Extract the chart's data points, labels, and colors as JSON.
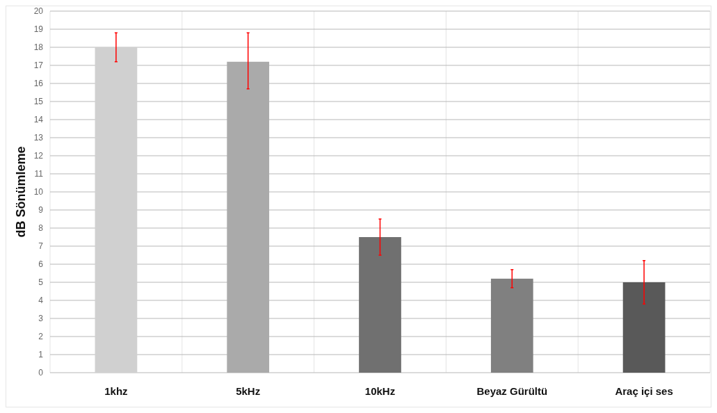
{
  "chart_data": {
    "type": "bar",
    "ylabel": "dB Sönümleme",
    "categories": [
      "1khz",
      "5kHz",
      "10kHz",
      "Beyaz Gürültü",
      "Araç içi ses"
    ],
    "values": [
      18.0,
      17.2,
      7.5,
      5.2,
      5.0
    ],
    "colors": [
      "#d0d0d0",
      "#aaaaaa",
      "#707070",
      "#808080",
      "#595959"
    ],
    "errors": [
      [
        17.2,
        18.8
      ],
      [
        15.7,
        18.8
      ],
      [
        6.5,
        8.5
      ],
      [
        4.7,
        5.7
      ],
      [
        3.8,
        6.2
      ]
    ],
    "ylim": [
      0,
      20
    ],
    "yticks": [
      0,
      1,
      2,
      3,
      4,
      5,
      6,
      7,
      8,
      9,
      10,
      11,
      12,
      13,
      14,
      15,
      16,
      17,
      18,
      19,
      20
    ],
    "grid": true
  }
}
